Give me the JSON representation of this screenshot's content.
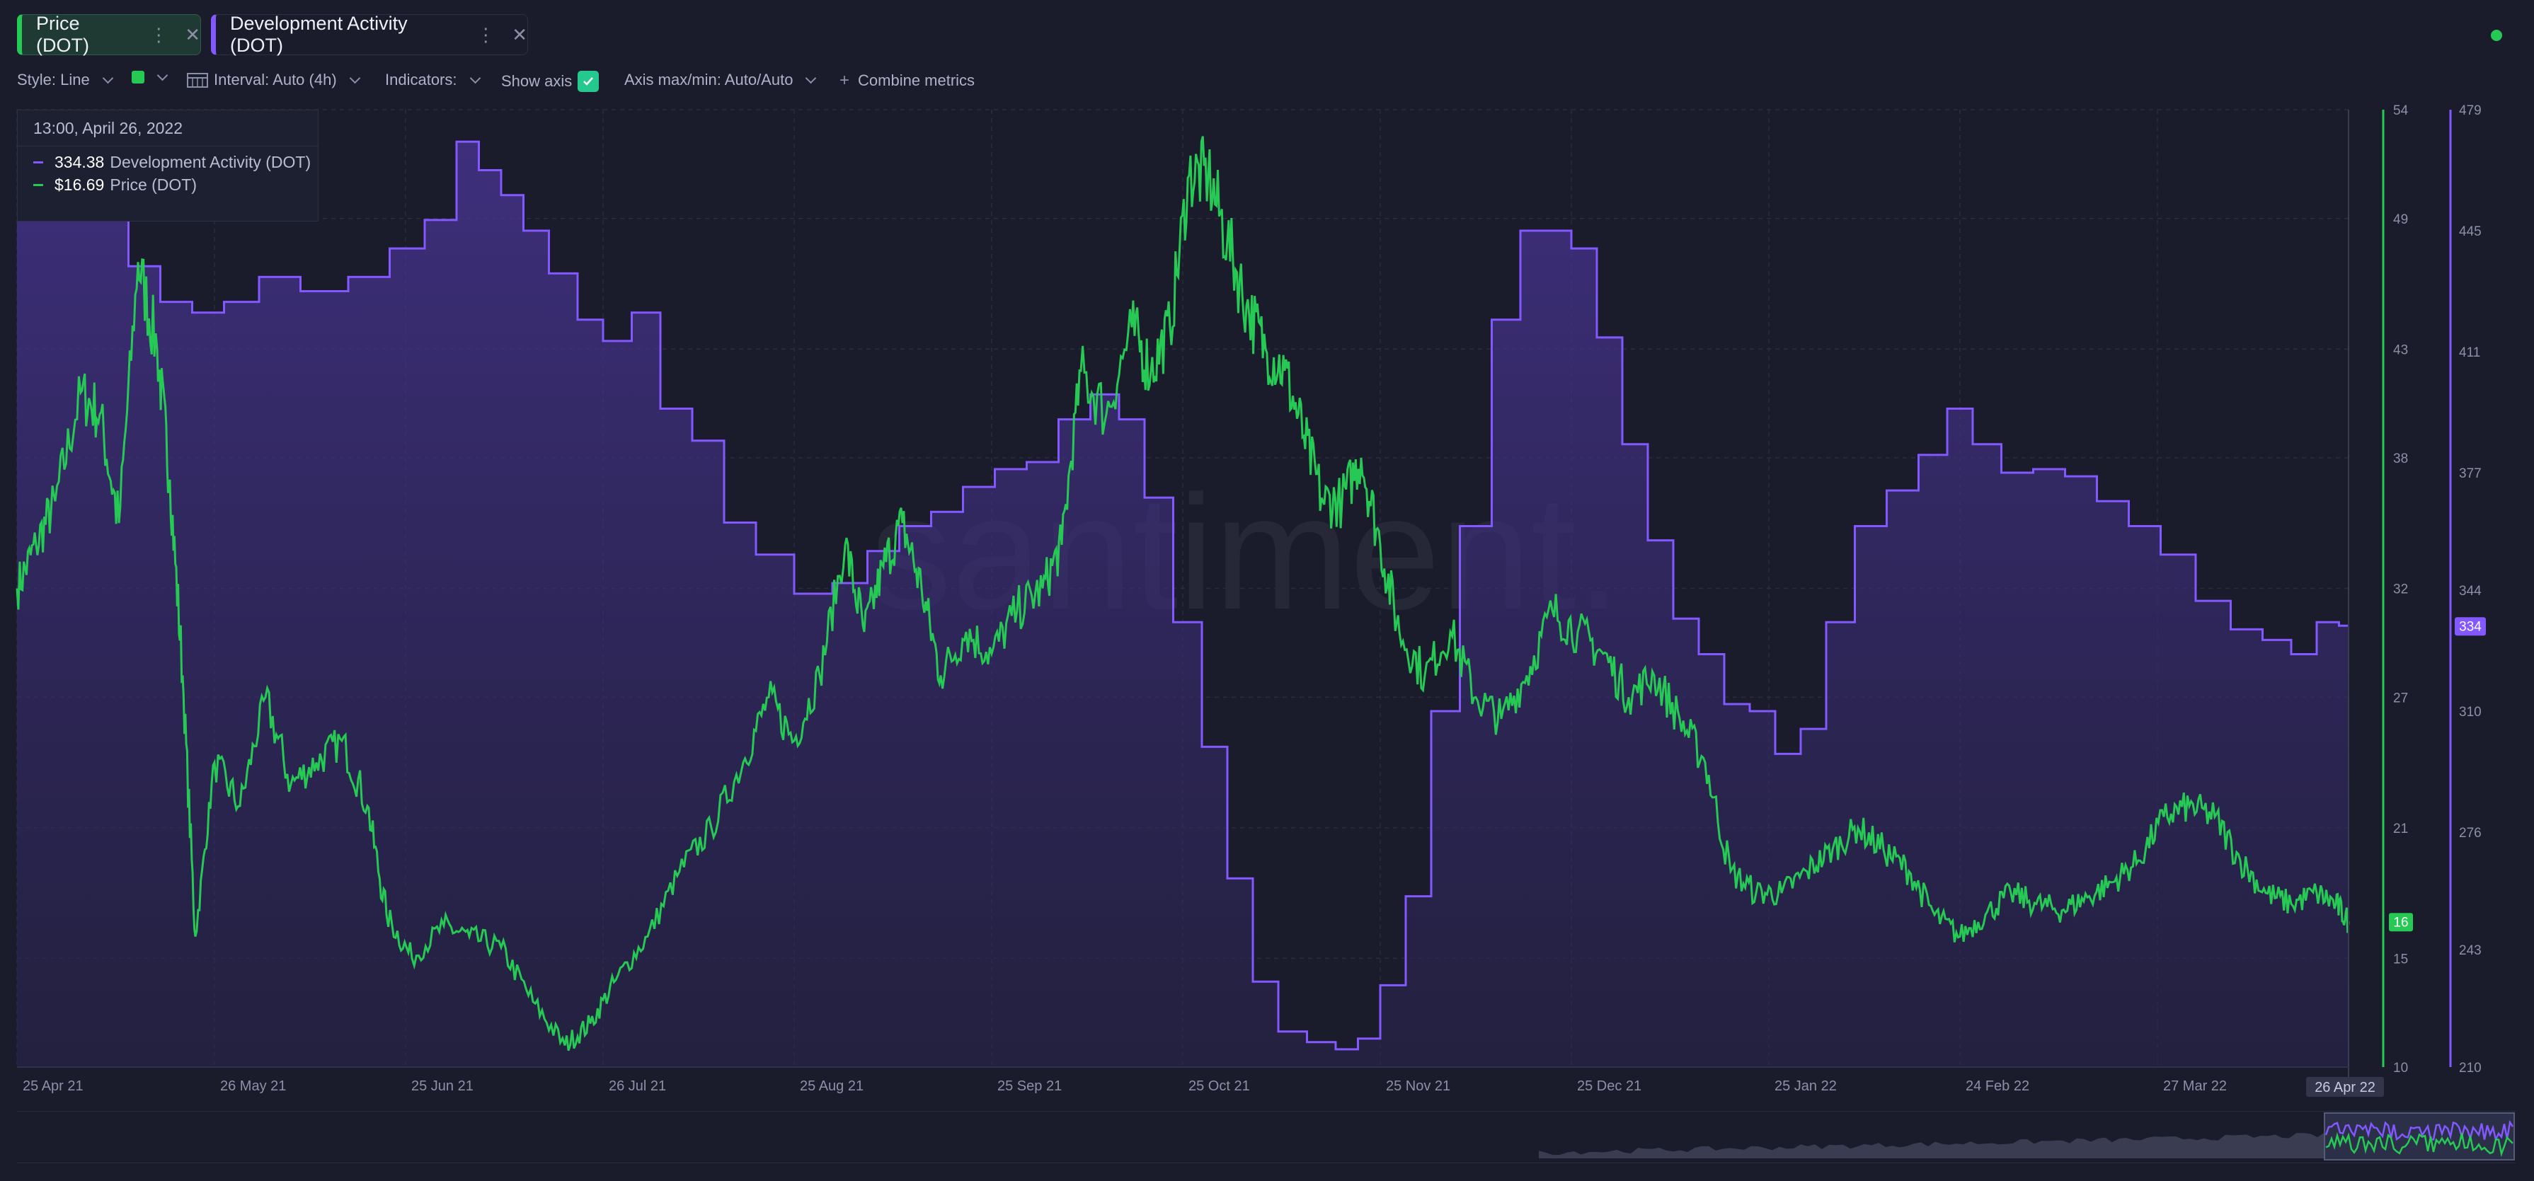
{
  "tabs": [
    {
      "label": "Price (DOT)",
      "color": "#26c953"
    },
    {
      "label": "Development Activity (DOT)",
      "color": "#8358ff"
    }
  ],
  "icons": {
    "menu": "vertical-dots-icon",
    "close": "close-icon",
    "status": "online-dot-icon",
    "interval": "calendar-icon",
    "check": "check-icon",
    "combine": "plus-icon"
  },
  "toolbar": {
    "style": "Style: Line",
    "interval": "Interval: Auto (4h)",
    "indicators": "Indicators:",
    "show_axis": "Show axis",
    "axis_max_min": "Axis max/min: Auto/Auto",
    "combine": "Combine metrics"
  },
  "tooltip": {
    "date": "13:00, April 26, 2022",
    "rows": [
      {
        "value": "334.38",
        "name": "Development Activity (DOT)"
      },
      {
        "value": "$16.69",
        "name": "Price (DOT)"
      }
    ]
  },
  "watermark": "santiment.",
  "chart_data": {
    "type": "line",
    "x_ticks": [
      "25 Apr 21",
      "26 May 21",
      "25 Jun 21",
      "26 Jul 21",
      "25 Aug 21",
      "25 Sep 21",
      "25 Oct 21",
      "25 Nov 21",
      "25 Dec 21",
      "25 Jan 22",
      "24 Feb 22",
      "27 Mar 22"
    ],
    "x_end_label": "26 Apr 22",
    "x_range": [
      "2021-04-25",
      "2022-04-26"
    ],
    "price_axis": {
      "ticks": [
        54,
        49,
        43,
        38,
        32,
        27,
        21,
        15,
        10
      ],
      "ylim": [
        10,
        54
      ],
      "current_label": "16",
      "color": "#26c953"
    },
    "dev_axis": {
      "ticks": [
        479,
        445,
        411,
        377,
        344,
        310,
        276,
        243,
        210
      ],
      "ylim": [
        210,
        479
      ],
      "current_label": "334",
      "color": "#8358ff"
    },
    "grid": true,
    "series": [
      {
        "name": "Development Activity (DOT)",
        "axis": "right",
        "color": "#8358ff",
        "fill": true,
        "points": [
          [
            "2021-04-25",
            470
          ],
          [
            "2021-05-05",
            470
          ],
          [
            "2021-05-10",
            455
          ],
          [
            "2021-05-15",
            435
          ],
          [
            "2021-05-20",
            425
          ],
          [
            "2021-05-25",
            422
          ],
          [
            "2021-05-30",
            425
          ],
          [
            "2021-06-05",
            432
          ],
          [
            "2021-06-12",
            428
          ],
          [
            "2021-06-20",
            432
          ],
          [
            "2021-06-25",
            440
          ],
          [
            "2021-07-01",
            448
          ],
          [
            "2021-07-05",
            470
          ],
          [
            "2021-07-08",
            462
          ],
          [
            "2021-07-12",
            455
          ],
          [
            "2021-07-15",
            445
          ],
          [
            "2021-07-20",
            433
          ],
          [
            "2021-07-24",
            420
          ],
          [
            "2021-07-28",
            414
          ],
          [
            "2021-08-02",
            422
          ],
          [
            "2021-08-06",
            395
          ],
          [
            "2021-08-12",
            386
          ],
          [
            "2021-08-16",
            363
          ],
          [
            "2021-08-22",
            354
          ],
          [
            "2021-08-28",
            343
          ],
          [
            "2021-09-03",
            346
          ],
          [
            "2021-09-08",
            355
          ],
          [
            "2021-09-13",
            362
          ],
          [
            "2021-09-18",
            366
          ],
          [
            "2021-09-23",
            373
          ],
          [
            "2021-09-28",
            378
          ],
          [
            "2021-10-03",
            380
          ],
          [
            "2021-10-08",
            392
          ],
          [
            "2021-10-13",
            399
          ],
          [
            "2021-10-17",
            392
          ],
          [
            "2021-10-21",
            370
          ],
          [
            "2021-10-26",
            335
          ],
          [
            "2021-10-30",
            300
          ],
          [
            "2021-11-03",
            263
          ],
          [
            "2021-11-07",
            234
          ],
          [
            "2021-11-11",
            220
          ],
          [
            "2021-11-16",
            217
          ],
          [
            "2021-11-20",
            215
          ],
          [
            "2021-11-23",
            218
          ],
          [
            "2021-11-27",
            233
          ],
          [
            "2021-12-01",
            258
          ],
          [
            "2021-12-05",
            310
          ],
          [
            "2021-12-10",
            362
          ],
          [
            "2021-12-15",
            420
          ],
          [
            "2021-12-19",
            445
          ],
          [
            "2021-12-23",
            445
          ],
          [
            "2021-12-27",
            440
          ],
          [
            "2021-12-31",
            415
          ],
          [
            "2022-01-04",
            385
          ],
          [
            "2022-01-08",
            358
          ],
          [
            "2022-01-12",
            336
          ],
          [
            "2022-01-16",
            326
          ],
          [
            "2022-01-20",
            312
          ],
          [
            "2022-01-24",
            310
          ],
          [
            "2022-01-28",
            298
          ],
          [
            "2022-02-01",
            305
          ],
          [
            "2022-02-05",
            335
          ],
          [
            "2022-02-10",
            362
          ],
          [
            "2022-02-15",
            372
          ],
          [
            "2022-02-20",
            382
          ],
          [
            "2022-02-24",
            395
          ],
          [
            "2022-02-28",
            385
          ],
          [
            "2022-03-05",
            377
          ],
          [
            "2022-03-10",
            378
          ],
          [
            "2022-03-15",
            376
          ],
          [
            "2022-03-20",
            369
          ],
          [
            "2022-03-25",
            362
          ],
          [
            "2022-03-30",
            354
          ],
          [
            "2022-04-05",
            341
          ],
          [
            "2022-04-10",
            333
          ],
          [
            "2022-04-15",
            330
          ],
          [
            "2022-04-19",
            326
          ],
          [
            "2022-04-23",
            335
          ],
          [
            "2022-04-26",
            334
          ]
        ]
      },
      {
        "name": "Price (DOT)",
        "axis": "left",
        "color": "#26c953",
        "fill": false,
        "points": [
          [
            "2021-04-25",
            32
          ],
          [
            "2021-04-28",
            34
          ],
          [
            "2021-05-01",
            36
          ],
          [
            "2021-05-05",
            41
          ],
          [
            "2021-05-08",
            40
          ],
          [
            "2021-05-11",
            35
          ],
          [
            "2021-05-14",
            47
          ],
          [
            "2021-05-17",
            43
          ],
          [
            "2021-05-19",
            37
          ],
          [
            "2021-05-21",
            28
          ],
          [
            "2021-05-23",
            16
          ],
          [
            "2021-05-26",
            24
          ],
          [
            "2021-05-30",
            22
          ],
          [
            "2021-06-03",
            27
          ],
          [
            "2021-06-07",
            23
          ],
          [
            "2021-06-11",
            24
          ],
          [
            "2021-06-15",
            25
          ],
          [
            "2021-06-19",
            22
          ],
          [
            "2021-06-22",
            17
          ],
          [
            "2021-06-26",
            15
          ],
          [
            "2021-07-01",
            16.5
          ],
          [
            "2021-07-05",
            16
          ],
          [
            "2021-07-10",
            15.5
          ],
          [
            "2021-07-15",
            13
          ],
          [
            "2021-07-20",
            11
          ],
          [
            "2021-07-24",
            12
          ],
          [
            "2021-07-28",
            14
          ],
          [
            "2021-08-02",
            16
          ],
          [
            "2021-08-07",
            19
          ],
          [
            "2021-08-12",
            21
          ],
          [
            "2021-08-17",
            24
          ],
          [
            "2021-08-21",
            27
          ],
          [
            "2021-08-25",
            25
          ],
          [
            "2021-08-29",
            28
          ],
          [
            "2021-09-02",
            34
          ],
          [
            "2021-09-05",
            30
          ],
          [
            "2021-09-08",
            33
          ],
          [
            "2021-09-11",
            35
          ],
          [
            "2021-09-14",
            32
          ],
          [
            "2021-09-17",
            28
          ],
          [
            "2021-09-21",
            30
          ],
          [
            "2021-09-25",
            29
          ],
          [
            "2021-09-29",
            31
          ],
          [
            "2021-10-03",
            32
          ],
          [
            "2021-10-06",
            34
          ],
          [
            "2021-10-09",
            42
          ],
          [
            "2021-10-13",
            40
          ],
          [
            "2021-10-17",
            44
          ],
          [
            "2021-10-20",
            42
          ],
          [
            "2021-10-23",
            44
          ],
          [
            "2021-10-26",
            51
          ],
          [
            "2021-10-29",
            51
          ],
          [
            "2021-11-01",
            48
          ],
          [
            "2021-11-04",
            45
          ],
          [
            "2021-11-07",
            43
          ],
          [
            "2021-11-10",
            42
          ],
          [
            "2021-11-13",
            39
          ],
          [
            "2021-11-16",
            36
          ],
          [
            "2021-11-19",
            36
          ],
          [
            "2021-11-22",
            38
          ],
          [
            "2021-11-25",
            34
          ],
          [
            "2021-11-28",
            30
          ],
          [
            "2021-12-02",
            28
          ],
          [
            "2021-12-06",
            30
          ],
          [
            "2021-12-10",
            27
          ],
          [
            "2021-12-14",
            26
          ],
          [
            "2021-12-18",
            28
          ],
          [
            "2021-12-22",
            31
          ],
          [
            "2021-12-26",
            30
          ],
          [
            "2021-12-30",
            29
          ],
          [
            "2022-01-03",
            27
          ],
          [
            "2022-01-07",
            28
          ],
          [
            "2022-01-11",
            26
          ],
          [
            "2022-01-15",
            24
          ],
          [
            "2022-01-19",
            19
          ],
          [
            "2022-01-23",
            18
          ],
          [
            "2022-01-27",
            18
          ],
          [
            "2022-01-31",
            19
          ],
          [
            "2022-02-04",
            20
          ],
          [
            "2022-02-08",
            21
          ],
          [
            "2022-02-12",
            20
          ],
          [
            "2022-02-16",
            19
          ],
          [
            "2022-02-20",
            17
          ],
          [
            "2022-02-24",
            16
          ],
          [
            "2022-02-28",
            17
          ],
          [
            "2022-03-04",
            18
          ],
          [
            "2022-03-08",
            17.5
          ],
          [
            "2022-03-12",
            17.2
          ],
          [
            "2022-03-16",
            17.8
          ],
          [
            "2022-03-20",
            18.5
          ],
          [
            "2022-03-24",
            19.5
          ],
          [
            "2022-03-28",
            21.5
          ],
          [
            "2022-04-01",
            22
          ],
          [
            "2022-04-05",
            21.5
          ],
          [
            "2022-04-09",
            19.5
          ],
          [
            "2022-04-13",
            18
          ],
          [
            "2022-04-17",
            17.5
          ],
          [
            "2022-04-21",
            18
          ],
          [
            "2022-04-24",
            17.5
          ],
          [
            "2022-04-26",
            16.69
          ]
        ]
      }
    ]
  }
}
